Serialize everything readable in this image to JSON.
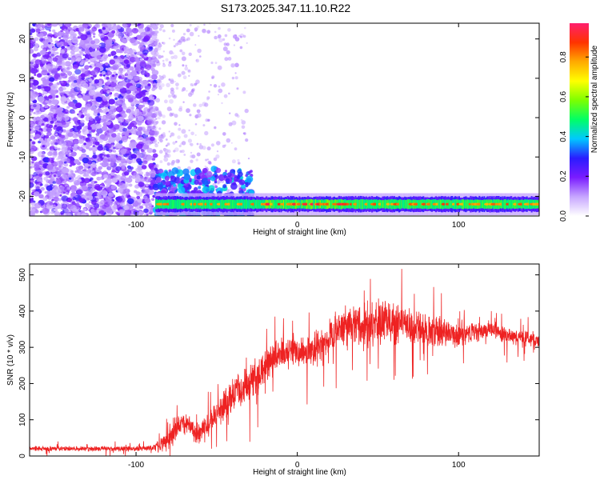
{
  "title": "S173.2025.347.11.10.R22",
  "chart_data": [
    {
      "type": "heatmap",
      "xlabel": "Height of straight line (km)",
      "ylabel": "Frequency (Hz)",
      "xlim": [
        -166,
        150
      ],
      "ylim": [
        -25,
        24
      ],
      "x_ticks": [
        -100,
        0,
        100
      ],
      "x_tick_labels": [
        "-100",
        "0",
        "100"
      ],
      "y_ticks": [
        -20,
        -10,
        0,
        10,
        20
      ],
      "y_tick_labels": [
        "-20",
        "-10",
        "0",
        "10",
        "20"
      ],
      "noise_region_x": [
        -166,
        -88
      ],
      "noise_region_y": [
        -25,
        24
      ],
      "sparse_region_x": [
        -88,
        -30
      ],
      "signal_band_frequency": -22,
      "signal_band_x": [
        -88,
        150
      ],
      "signal_peak_x": [
        -20,
        30
      ],
      "grid": false
    },
    {
      "type": "line",
      "xlabel": "Height of straight line (km)",
      "ylabel": "SNR (10 * v/v)",
      "xlim": [
        -166,
        150
      ],
      "ylim": [
        0,
        530
      ],
      "x_ticks": [
        -100,
        0,
        100
      ],
      "x_tick_labels": [
        "-100",
        "0",
        "100"
      ],
      "y_ticks": [
        0,
        100,
        200,
        300,
        400,
        500
      ],
      "y_tick_labels": [
        "0",
        "100",
        "200",
        "300",
        "400",
        "500"
      ],
      "series": [
        {
          "color": "#ee2222",
          "x": [
            -166,
            -140,
            -120,
            -100,
            -90,
            -82,
            -76,
            -70,
            -62,
            -55,
            -48,
            -40,
            -30,
            -20,
            -10,
            0,
            10,
            20,
            30,
            40,
            50,
            60,
            70,
            80,
            90,
            100,
            110,
            120,
            130,
            140,
            150
          ],
          "y": [
            20,
            20,
            20,
            20,
            22,
            35,
            80,
            95,
            60,
            90,
            120,
            170,
            200,
            240,
            280,
            285,
            290,
            330,
            360,
            360,
            365,
            370,
            360,
            345,
            345,
            330,
            340,
            350,
            330,
            325,
            320
          ],
          "noise_amplitude": [
            8,
            8,
            8,
            8,
            10,
            30,
            45,
            40,
            35,
            40,
            45,
            60,
            60,
            60,
            60,
            45,
            55,
            60,
            70,
            70,
            75,
            70,
            60,
            50,
            45,
            40,
            35,
            30,
            28,
            25,
            25
          ]
        }
      ],
      "grid": false
    }
  ],
  "colorbar": {
    "label": "Normalized spectral amplitude",
    "range": [
      0,
      0.97
    ],
    "ticks": [
      0.0,
      0.2,
      0.4,
      0.6,
      0.8
    ],
    "tick_labels": [
      "0.0",
      "0.2",
      "0.4",
      "0.6",
      "0.8"
    ],
    "colors": [
      "#ffffff",
      "#c7a6ff",
      "#7a1cff",
      "#2a1cff",
      "#00c8ff",
      "#00ff66",
      "#7dff00",
      "#ffff00",
      "#ffaa00",
      "#ff3300",
      "#ff1f6e"
    ]
  }
}
